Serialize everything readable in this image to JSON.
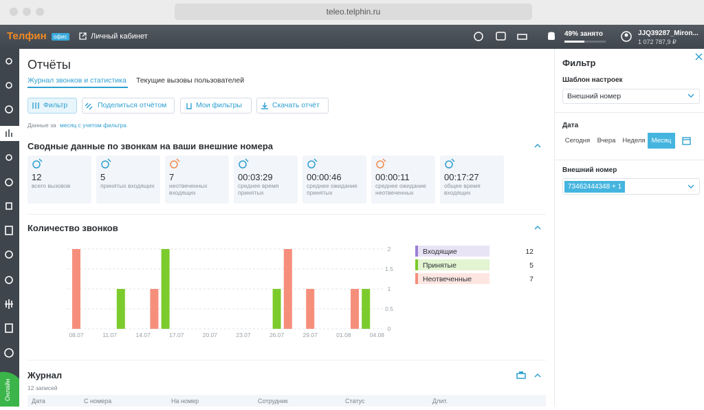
{
  "browser": {
    "url": "teleo.telphin.ru"
  },
  "header": {
    "logo": "Телфин",
    "logo_badge": "офис",
    "cabinet": "Личный кабинет",
    "usage": "49% занято",
    "user": "JJQ39287_Miron...",
    "balance": "1 072 787,9 ₽"
  },
  "sidebar": {
    "status": "Онлайн"
  },
  "page": {
    "title": "Отчёты",
    "tabs": [
      "Журнал звонков и статистика",
      "Текущие вызовы пользователей"
    ],
    "buttons": [
      "Фильтр",
      "Поделиться отчётом",
      "Мои фильтры",
      "Скачать отчёт"
    ],
    "period_prefix": "Данные за",
    "period_link": "месяц с учетом фильтра"
  },
  "summary": {
    "title": "Сводные данные по звонкам на ваши внешние номера",
    "cards": [
      {
        "value": "12",
        "label": "всего вызовов"
      },
      {
        "value": "5",
        "label": "принятых входящих"
      },
      {
        "value": "7",
        "label": "неотвеченных входящих"
      },
      {
        "value": "00:03:29",
        "label": "среднее время принятых"
      },
      {
        "value": "00:00:46",
        "label": "среднее ожидание принятых"
      },
      {
        "value": "00:00:11",
        "label": "среднее ожидание неотвеченных"
      },
      {
        "value": "00:17:27",
        "label": "общее время входящих"
      }
    ]
  },
  "chart_data": {
    "type": "bar",
    "title": "Количество звонков",
    "categories": [
      "08.07",
      null,
      null,
      "11.07",
      null,
      null,
      "14.07",
      null,
      null,
      "17.07",
      null,
      null,
      "20.07",
      null,
      null,
      "23.07",
      null,
      null,
      "26.07",
      null,
      null,
      "29.07",
      null,
      null,
      "01.08",
      null,
      null,
      "04.08"
    ],
    "series": [
      {
        "name": "Входящие",
        "color": "#9b7fd6",
        "total": 12
      },
      {
        "name": "Принятые",
        "color": "#7ccb2c",
        "total": 5,
        "values": [
          0,
          0,
          0,
          0,
          1,
          0,
          0,
          0,
          2,
          0,
          0,
          0,
          0,
          0,
          0,
          0,
          0,
          0,
          1,
          0,
          0,
          0,
          0,
          0,
          0,
          0,
          1,
          0
        ]
      },
      {
        "name": "Неотвеченные",
        "color": "#f58f7c",
        "total": 7,
        "values": [
          2,
          0,
          0,
          0,
          0,
          0,
          0,
          1,
          0,
          0,
          0,
          0,
          0,
          0,
          0,
          0,
          0,
          0,
          0,
          2,
          0,
          1,
          0,
          0,
          0,
          1,
          0,
          0
        ]
      }
    ],
    "ylim": [
      0,
      2
    ],
    "yticks": [
      0,
      0.5,
      1,
      1.5,
      2
    ],
    "grid": true
  },
  "journal": {
    "title": "Журнал",
    "count": "12 записей",
    "columns": [
      "Дата",
      "С номера",
      "На номер",
      "Сотрудник",
      "Статус",
      "Длит."
    ]
  },
  "filter": {
    "title": "Фильтр",
    "template_label": "Шаблон настроек",
    "template_value": "Внешний номер",
    "date_label": "Дата",
    "date_options": [
      "Сегодня",
      "Вчера",
      "Неделя",
      "Месяц"
    ],
    "date_active": 3,
    "number_label": "Внешний номер",
    "number_chip": "73462444348 + 1"
  }
}
